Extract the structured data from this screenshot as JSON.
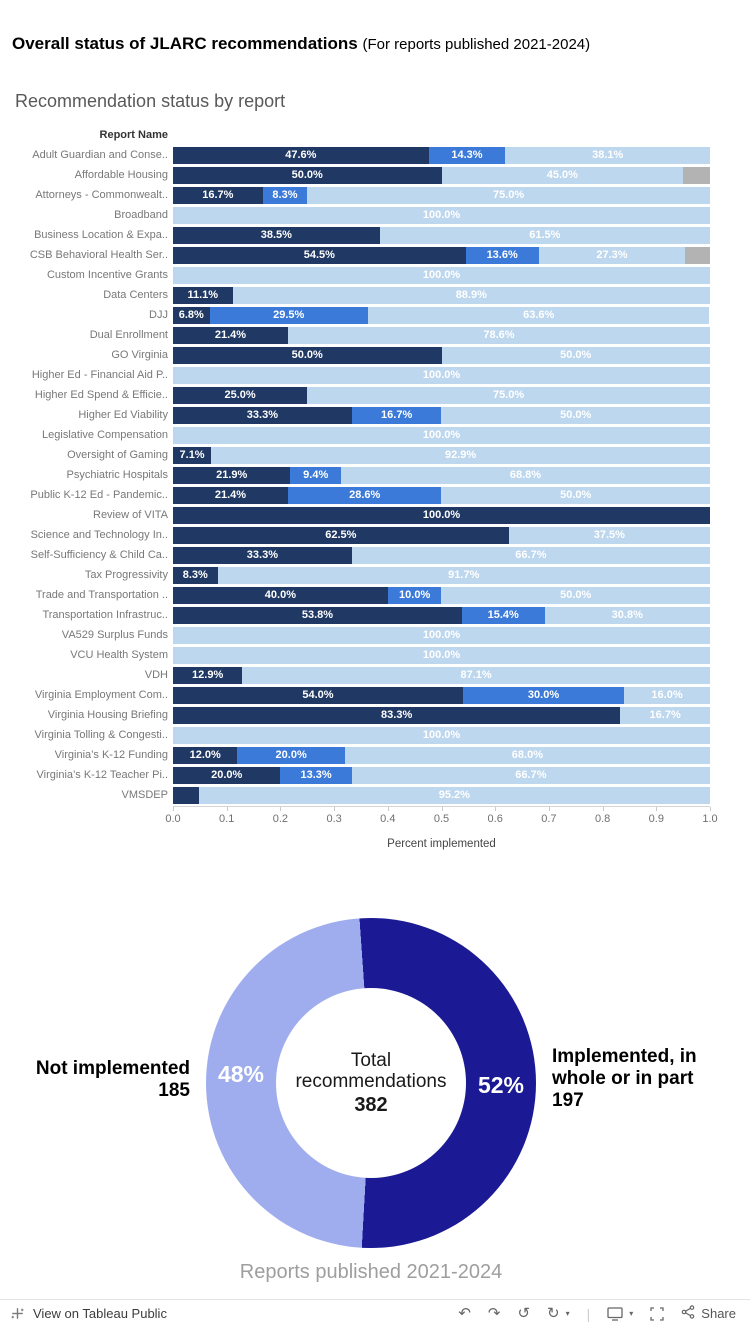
{
  "header": {
    "title": "Overall status of JLARC recommendations",
    "subtitle": "(For reports published 2021-2024)"
  },
  "icons": {
    "undo": "↶",
    "redo": "↷",
    "replay": "↺",
    "refresh": "↻",
    "caret_down": "▾",
    "separator": "|"
  },
  "toolbar": {
    "view_label": "View on Tableau Public",
    "share_label": "Share"
  },
  "chart_data": [
    {
      "type": "bar",
      "variant": "horizontal-stacked-percent",
      "title": "Recommendation status by report",
      "row_header": "Report Name",
      "xlabel": "Percent implemented",
      "xlim": [
        0.0,
        1.0
      ],
      "x_ticks": [
        "0.0",
        "0.1",
        "0.2",
        "0.3",
        "0.4",
        "0.5",
        "0.6",
        "0.7",
        "0.8",
        "0.9",
        "1.0"
      ],
      "series_colors": {
        "navy": "#1f3864",
        "blue": "#3b7ad8",
        "light": "#bdd7ee",
        "gray": "#b3b3b3"
      },
      "min_label_pct": 6,
      "rows": [
        {
          "report": "Adult Guardian and Conse..",
          "segments": [
            {
              "series": "navy",
              "pct": 47.6
            },
            {
              "series": "blue",
              "pct": 14.3
            },
            {
              "series": "light",
              "pct": 38.1
            }
          ]
        },
        {
          "report": "Affordable Housing",
          "segments": [
            {
              "series": "navy",
              "pct": 50.0
            },
            {
              "series": "light",
              "pct": 45.0
            },
            {
              "series": "gray",
              "pct": 5.0
            }
          ]
        },
        {
          "report": "Attorneys - Commonwealt..",
          "segments": [
            {
              "series": "navy",
              "pct": 16.7
            },
            {
              "series": "blue",
              "pct": 8.3
            },
            {
              "series": "light",
              "pct": 75.0
            }
          ]
        },
        {
          "report": "Broadband",
          "segments": [
            {
              "series": "light",
              "pct": 100.0
            }
          ]
        },
        {
          "report": "Business Location & Expa..",
          "segments": [
            {
              "series": "navy",
              "pct": 38.5
            },
            {
              "series": "light",
              "pct": 61.5
            }
          ]
        },
        {
          "report": "CSB Behavioral Health Ser..",
          "segments": [
            {
              "series": "navy",
              "pct": 54.5
            },
            {
              "series": "blue",
              "pct": 13.6
            },
            {
              "series": "light",
              "pct": 27.3
            },
            {
              "series": "gray",
              "pct": 4.6
            }
          ]
        },
        {
          "report": "Custom Incentive Grants",
          "segments": [
            {
              "series": "light",
              "pct": 100.0
            }
          ]
        },
        {
          "report": "Data Centers",
          "segments": [
            {
              "series": "navy",
              "pct": 11.1
            },
            {
              "series": "light",
              "pct": 88.9
            }
          ]
        },
        {
          "report": "DJJ",
          "segments": [
            {
              "series": "navy",
              "pct": 6.8
            },
            {
              "series": "blue",
              "pct": 29.5
            },
            {
              "series": "light",
              "pct": 63.6
            }
          ]
        },
        {
          "report": "Dual Enrollment",
          "segments": [
            {
              "series": "navy",
              "pct": 21.4
            },
            {
              "series": "light",
              "pct": 78.6
            }
          ]
        },
        {
          "report": "GO Virginia",
          "segments": [
            {
              "series": "navy",
              "pct": 50.0
            },
            {
              "series": "light",
              "pct": 50.0
            }
          ]
        },
        {
          "report": "Higher Ed - Financial Aid P..",
          "segments": [
            {
              "series": "light",
              "pct": 100.0
            }
          ]
        },
        {
          "report": "Higher Ed Spend & Efficie..",
          "segments": [
            {
              "series": "navy",
              "pct": 25.0
            },
            {
              "series": "light",
              "pct": 75.0
            }
          ]
        },
        {
          "report": "Higher Ed Viability",
          "segments": [
            {
              "series": "navy",
              "pct": 33.3
            },
            {
              "series": "blue",
              "pct": 16.7
            },
            {
              "series": "light",
              "pct": 50.0
            }
          ]
        },
        {
          "report": "Legislative Compensation",
          "segments": [
            {
              "series": "light",
              "pct": 100.0
            }
          ]
        },
        {
          "report": "Oversight of Gaming",
          "segments": [
            {
              "series": "navy",
              "pct": 7.1
            },
            {
              "series": "light",
              "pct": 92.9
            }
          ]
        },
        {
          "report": "Psychiatric Hospitals",
          "segments": [
            {
              "series": "navy",
              "pct": 21.9
            },
            {
              "series": "blue",
              "pct": 9.4
            },
            {
              "series": "light",
              "pct": 68.8
            }
          ]
        },
        {
          "report": "Public K-12 Ed - Pandemic..",
          "segments": [
            {
              "series": "navy",
              "pct": 21.4
            },
            {
              "series": "blue",
              "pct": 28.6
            },
            {
              "series": "light",
              "pct": 50.0
            }
          ]
        },
        {
          "report": "Review of VITA",
          "segments": [
            {
              "series": "navy",
              "pct": 100.0
            }
          ]
        },
        {
          "report": "Science and Technology In..",
          "segments": [
            {
              "series": "navy",
              "pct": 62.5
            },
            {
              "series": "light",
              "pct": 37.5
            }
          ]
        },
        {
          "report": "Self-Sufficiency & Child Ca..",
          "segments": [
            {
              "series": "navy",
              "pct": 33.3
            },
            {
              "series": "light",
              "pct": 66.7
            }
          ]
        },
        {
          "report": "Tax Progressivity",
          "segments": [
            {
              "series": "navy",
              "pct": 8.3
            },
            {
              "series": "light",
              "pct": 91.7
            }
          ]
        },
        {
          "report": "Trade and Transportation ..",
          "segments": [
            {
              "series": "navy",
              "pct": 40.0
            },
            {
              "series": "blue",
              "pct": 10.0
            },
            {
              "series": "light",
              "pct": 50.0
            }
          ]
        },
        {
          "report": "Transportation Infrastruc..",
          "segments": [
            {
              "series": "navy",
              "pct": 53.8
            },
            {
              "series": "blue",
              "pct": 15.4
            },
            {
              "series": "light",
              "pct": 30.8
            }
          ]
        },
        {
          "report": "VA529 Surplus Funds",
          "segments": [
            {
              "series": "light",
              "pct": 100.0
            }
          ]
        },
        {
          "report": "VCU Health System",
          "segments": [
            {
              "series": "light",
              "pct": 100.0
            }
          ]
        },
        {
          "report": "VDH",
          "segments": [
            {
              "series": "navy",
              "pct": 12.9
            },
            {
              "series": "light",
              "pct": 87.1
            }
          ]
        },
        {
          "report": "Virginia Employment Com..",
          "segments": [
            {
              "series": "navy",
              "pct": 54.0
            },
            {
              "series": "blue",
              "pct": 30.0
            },
            {
              "series": "light",
              "pct": 16.0
            }
          ]
        },
        {
          "report": "Virginia Housing Briefing",
          "segments": [
            {
              "series": "navy",
              "pct": 83.3
            },
            {
              "series": "light",
              "pct": 16.7
            }
          ]
        },
        {
          "report": "Virginia Tolling & Congesti..",
          "segments": [
            {
              "series": "light",
              "pct": 100.0
            }
          ]
        },
        {
          "report": "Virginia’s K-12 Funding",
          "segments": [
            {
              "series": "navy",
              "pct": 12.0
            },
            {
              "series": "blue",
              "pct": 20.0
            },
            {
              "series": "light",
              "pct": 68.0
            }
          ]
        },
        {
          "report": "Virginia’s K-12 Teacher Pi..",
          "segments": [
            {
              "series": "navy",
              "pct": 20.0
            },
            {
              "series": "blue",
              "pct": 13.3
            },
            {
              "series": "light",
              "pct": 66.7
            }
          ]
        },
        {
          "report": "VMSDEP",
          "segments": [
            {
              "series": "navy",
              "pct": 4.8
            },
            {
              "series": "light",
              "pct": 95.2
            }
          ]
        }
      ]
    },
    {
      "type": "pie",
      "variant": "donut",
      "start_angle_deg": -4,
      "center": {
        "line1": "Total",
        "line2": "recommendations",
        "value": "382"
      },
      "slices": [
        {
          "name": "implemented",
          "label": "Implemented, in whole or in part",
          "value": 197,
          "pct": 52,
          "pct_label": "52%",
          "color": "#1b1a94",
          "side": "right"
        },
        {
          "name": "not_implemented",
          "label": "Not implemented",
          "value": 185,
          "pct": 48,
          "pct_label": "48%",
          "color": "#9fadee",
          "side": "left"
        }
      ],
      "caption": "Reports published 2021-2024"
    }
  ]
}
